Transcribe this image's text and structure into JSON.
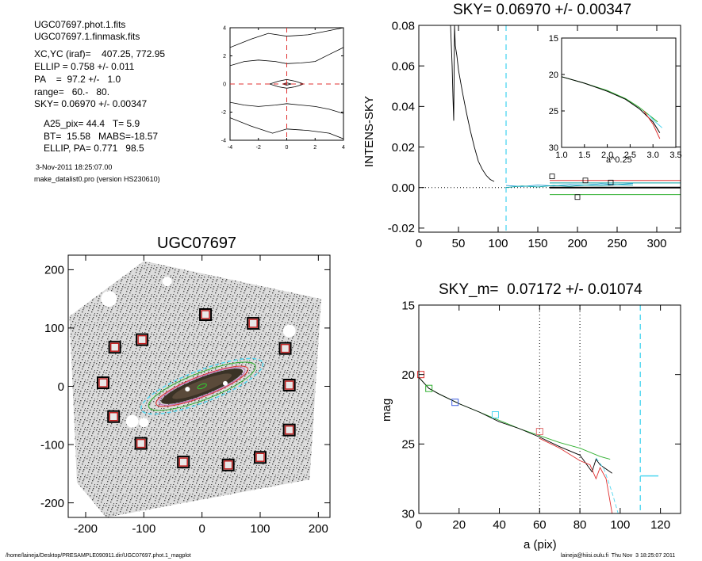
{
  "info": {
    "lines": [
      "UGC07697.phot.1.fits",
      "UGC07697.1.finmask.fits",
      "XC,YC (iraf)=    407.25, 772.95",
      "ELLIP = 0.758 +/- 0.011",
      "PA    =  97.2 +/-   1.0",
      "range=   60.-   80.",
      "SKY= 0.06970 +/- 0.00347",
      "A25_pix= 44.4   T= 5.9",
      "BT=  15.58   MABS=-18.57",
      "ELLIP, PA= 0.771   98.5"
    ],
    "date": "3-Nov-2011 18:25:07.00",
    "program": "make_datalist0.pro (version HS230610)"
  },
  "footer": {
    "left": "/home/laineja/Desktop/PRESAMPLE090911.dir/UGC07697.phot.1_magplot",
    "right": "laineja@hiisi.oulu.fi  Thu Nov  3 18:25:07 2011"
  },
  "chart_data": [
    {
      "id": "contour",
      "type": "line",
      "title": "",
      "xlim": [
        -4,
        4
      ],
      "ylim": [
        -4,
        4
      ],
      "xticks": [
        "-4",
        "-2",
        "0",
        "2",
        "4"
      ],
      "yticks": [
        "-4",
        "-2",
        "0",
        "2",
        "4"
      ],
      "contours": [
        [
          [
            -0.3,
            0
          ],
          [
            0,
            0.08
          ],
          [
            0.3,
            0
          ],
          [
            0,
            -0.08
          ],
          [
            -0.3,
            0
          ]
        ],
        [
          [
            -1.2,
            0
          ],
          [
            -0.6,
            0.2
          ],
          [
            0,
            0.32
          ],
          [
            0.6,
            0.2
          ],
          [
            1.2,
            0
          ],
          [
            0.6,
            -0.2
          ],
          [
            0,
            -0.3
          ],
          [
            -0.6,
            -0.2
          ],
          [
            -1.2,
            0
          ]
        ],
        [
          [
            -4,
            1.3
          ],
          [
            -3,
            1.6
          ],
          [
            -2,
            1.7
          ],
          [
            -0.8,
            1.6
          ],
          [
            0,
            1.45
          ],
          [
            1,
            1.5
          ],
          [
            2,
            1.6
          ],
          [
            3,
            2.1
          ],
          [
            4,
            2.6
          ]
        ],
        [
          [
            -4,
            -1.3
          ],
          [
            -3,
            -1.5
          ],
          [
            -2,
            -1.6
          ],
          [
            -0.8,
            -1.5
          ],
          [
            0,
            -1.4
          ],
          [
            1,
            -1.5
          ],
          [
            2,
            -1.6
          ],
          [
            3,
            -1.8
          ],
          [
            4,
            -2.1
          ]
        ],
        [
          [
            -4,
            2.6
          ],
          [
            -2.5,
            3.2
          ],
          [
            -1.3,
            3.6
          ],
          [
            0,
            3.4
          ],
          [
            1.5,
            3.5
          ],
          [
            3,
            3.8
          ],
          [
            4,
            4
          ]
        ],
        [
          [
            -4,
            -2.4
          ],
          [
            -2.5,
            -3
          ],
          [
            -1,
            -3.5
          ],
          [
            0,
            -3.2
          ],
          [
            1.5,
            -3.3
          ],
          [
            3,
            -3.5
          ],
          [
            4,
            -3.9
          ]
        ]
      ],
      "crosshair": {
        "x": 0,
        "y": 0
      }
    },
    {
      "id": "sky-profile",
      "type": "line",
      "title": "SKY= 0.06970 +/- 0.00347",
      "xlabel": "",
      "ylabel": "INTENS-SKY",
      "xlim": [
        0,
        330
      ],
      "ylim": [
        -0.022,
        0.08
      ],
      "xticks": [
        "0",
        "50",
        "100",
        "150",
        "200",
        "250",
        "300"
      ],
      "yticks": [
        "-0.02",
        "0.00",
        "0.02",
        "0.04",
        "0.06",
        "0.08"
      ],
      "series": [
        {
          "color": "#000000",
          "x": [
            40,
            42,
            43,
            44,
            45,
            46,
            48,
            50,
            55,
            60,
            65,
            70,
            75,
            80,
            85,
            90,
            95
          ],
          "y": [
            0.08,
            0.06,
            0.045,
            0.033,
            0.08,
            0.07,
            0.065,
            0.058,
            0.047,
            0.037,
            0.028,
            0.02,
            0.013,
            0.009,
            0.006,
            0.004,
            0.003
          ]
        },
        {
          "color": "#1f9bd6",
          "x": [
            110,
            130,
            150,
            170,
            190,
            210,
            230,
            250,
            270
          ],
          "y": [
            0.001,
            0.0005,
            0.0012,
            0.0008,
            0.0015,
            0.0012,
            0.0018,
            0.0015,
            0.002
          ]
        },
        {
          "color": "#00a0a0",
          "x": [
            110,
            130,
            150,
            170,
            190,
            210,
            230,
            250,
            270
          ],
          "y": [
            0.0,
            0.0008,
            0.0003,
            0.001,
            0.0006,
            0.0012,
            0.0009,
            0.0014,
            0.0012
          ]
        }
      ],
      "hlines": [
        {
          "y": 0.0035,
          "x0": 165,
          "x1": 330,
          "color": "#e03030"
        },
        {
          "y": 0.0023,
          "x0": 165,
          "x1": 330,
          "color": "#00a0a0"
        },
        {
          "y": 0.0,
          "x0": 165,
          "x1": 330,
          "color": "#000000"
        },
        {
          "y": -0.0035,
          "x0": 165,
          "x1": 330,
          "color": "#30b030"
        },
        {
          "y": 0.0,
          "x0": 0,
          "x1": 165,
          "color": "#000000",
          "dotted": true
        }
      ],
      "vlines": [
        {
          "x": 110,
          "color": "#4fd6f0"
        }
      ],
      "markers": [
        [
          168,
          0.0055
        ],
        [
          200,
          -0.0047
        ],
        [
          210,
          0.0035
        ],
        [
          242,
          0.0025
        ]
      ],
      "inset": {
        "xlabel": "a^0.25",
        "xlim": [
          1.0,
          3.5
        ],
        "ylim": [
          30,
          15
        ],
        "xticks": [
          "1.0",
          "1.5",
          "2.0",
          "2.5",
          "3.0",
          "3.5"
        ],
        "yticks": [
          "15",
          "20",
          "25",
          "30"
        ],
        "series": [
          {
            "color": "#30b030",
            "x": [
              1.0,
              1.5,
              2.0,
              2.4,
              2.7,
              3.0,
              3.1
            ],
            "y": [
              20.3,
              21.2,
              22.2,
              23.3,
              24.5,
              26.0,
              26.5
            ]
          },
          {
            "color": "#000000",
            "x": [
              1.0,
              1.5,
              2.0,
              2.4,
              2.7,
              3.0,
              3.15
            ],
            "y": [
              20.3,
              21.2,
              22.3,
              23.4,
              24.7,
              26.5,
              28.0
            ]
          },
          {
            "color": "#e03030",
            "x": [
              2.8,
              3.0,
              3.15
            ],
            "y": [
              25.0,
              26.8,
              28.8
            ]
          },
          {
            "color": "#4fd6f0",
            "x": [
              2.9,
              3.05,
              3.2
            ],
            "y": [
              25.5,
              26.5,
              27.3
            ]
          }
        ]
      }
    },
    {
      "id": "image",
      "type": "scatter",
      "title": "UGC07697",
      "xlim": [
        -230,
        220
      ],
      "ylim": [
        -225,
        225
      ],
      "xticks": [
        "-200",
        "-100",
        "0",
        "100",
        "200"
      ],
      "yticks": [
        "-200",
        "-100",
        "0",
        "100",
        "200"
      ],
      "mask_boxes": [
        [
          6,
          123
        ],
        [
          88,
          108
        ],
        [
          -103,
          80
        ],
        [
          -150,
          67
        ],
        [
          143,
          65
        ],
        [
          -170,
          6
        ],
        [
          150,
          2
        ],
        [
          -152,
          -52
        ],
        [
          150,
          -75
        ],
        [
          -105,
          -98
        ],
        [
          -32,
          -130
        ],
        [
          45,
          -135
        ],
        [
          100,
          -122
        ]
      ],
      "galaxy": {
        "cx": 0,
        "cy": 0,
        "pa_deg": 97.2,
        "ellip": 0.758
      }
    },
    {
      "id": "mag-profile",
      "type": "line",
      "title": "SKY_m=  0.07172 +/- 0.01074",
      "xlabel": "a (pix)",
      "ylabel": "mag",
      "xlim": [
        0,
        130
      ],
      "ylim": [
        30,
        15
      ],
      "xticks": [
        "0",
        "20",
        "40",
        "60",
        "80",
        "100",
        "120"
      ],
      "yticks": [
        "15",
        "20",
        "25",
        "30"
      ],
      "series": [
        {
          "color": "#30b030",
          "x": [
            0,
            5,
            10,
            20,
            30,
            40,
            50,
            60,
            70,
            80,
            90,
            95
          ],
          "y": [
            20.2,
            21.0,
            21.4,
            22.1,
            22.7,
            23.3,
            23.9,
            24.4,
            24.9,
            25.3,
            25.9,
            26.1
          ]
        },
        {
          "color": "#000000",
          "x": [
            0,
            5,
            10,
            20,
            30,
            40,
            50,
            60,
            70,
            80,
            86,
            88,
            90,
            92,
            96
          ],
          "y": [
            20.2,
            21.0,
            21.4,
            22.1,
            22.7,
            23.4,
            23.9,
            24.5,
            25.2,
            25.8,
            27.0,
            26.1,
            26.5,
            26.7,
            27.1
          ]
        },
        {
          "color": "#e03030",
          "x": [
            60,
            70,
            80,
            85,
            88,
            90,
            93,
            96
          ],
          "y": [
            24.6,
            25.3,
            26.2,
            26.5,
            27.5,
            26.7,
            27.5,
            30.0
          ]
        },
        {
          "color": "#4fd6f0",
          "x": [
            88,
            92,
            96,
            99
          ],
          "y": [
            26.0,
            26.8,
            28.5,
            30.0
          ]
        }
      ],
      "vlines": [
        {
          "x": 60,
          "style": "dotted"
        },
        {
          "x": 80,
          "style": "dotted"
        },
        {
          "x": 110,
          "style": "dashed",
          "color": "#4fd6f0"
        }
      ],
      "hseg": {
        "x0": 110,
        "x1": 119,
        "y": 27.3,
        "color": "#4fd6f0"
      },
      "markers": [
        {
          "x": 1,
          "y": 20.0,
          "color": "#e03030"
        },
        {
          "x": 5,
          "y": 21.0,
          "color": "#30b030"
        },
        {
          "x": 18,
          "y": 22.0,
          "color": "#4060e0"
        },
        {
          "x": 38,
          "y": 22.9,
          "color": "#4fd6f0"
        },
        {
          "x": 60,
          "y": 24.1,
          "color": "#e07070"
        }
      ]
    }
  ]
}
